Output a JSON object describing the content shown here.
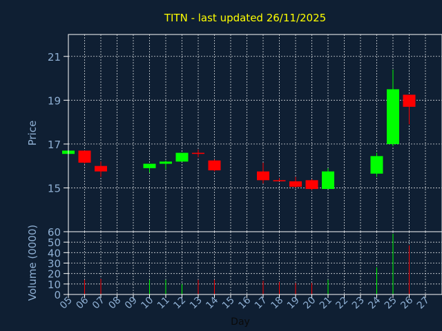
{
  "colors": {
    "background": "#0f1f33",
    "title": "#ffff00",
    "axis_text": "#8fb0d4",
    "frame": "#ffffff",
    "up": "#00ff00",
    "down": "#ff0000",
    "neutral": "#ff0000"
  },
  "chart_data": [
    {
      "type": "candlestick",
      "title": "TITN - last updated 26/11/2025",
      "xlabel": "",
      "ylabel": "Price",
      "ylim": [
        13.0,
        22.0
      ],
      "yticks": [
        "15",
        "17",
        "19",
        "21"
      ],
      "grid": true,
      "x": [
        "05",
        "06",
        "07",
        "08",
        "09",
        "10",
        "11",
        "12",
        "13",
        "14",
        "15",
        "16",
        "17",
        "18",
        "19",
        "20",
        "21",
        "22",
        "23",
        "24",
        "25",
        "26",
        "27"
      ],
      "candles": [
        {
          "x": "05",
          "open": 16.55,
          "high": 16.7,
          "low": 16.5,
          "close": 16.7
        },
        {
          "x": "06",
          "open": 16.7,
          "high": 16.7,
          "low": 16.1,
          "close": 16.15
        },
        {
          "x": "07",
          "open": 16.0,
          "high": 16.2,
          "low": 15.5,
          "close": 15.75
        },
        {
          "x": "10",
          "open": 15.9,
          "high": 16.1,
          "low": 15.7,
          "close": 16.1
        },
        {
          "x": "11",
          "open": 16.1,
          "high": 16.25,
          "low": 15.85,
          "close": 16.2
        },
        {
          "x": "12",
          "open": 16.2,
          "high": 16.6,
          "low": 16.2,
          "close": 16.6
        },
        {
          "x": "13",
          "open": 16.6,
          "high": 16.75,
          "low": 16.4,
          "close": 16.55
        },
        {
          "x": "14",
          "open": 16.25,
          "high": 16.3,
          "low": 15.75,
          "close": 15.8
        },
        {
          "x": "17",
          "open": 15.75,
          "high": 16.15,
          "low": 15.2,
          "close": 15.35
        },
        {
          "x": "18",
          "open": 15.35,
          "high": 15.45,
          "low": 15.3,
          "close": 15.3
        },
        {
          "x": "19",
          "open": 15.3,
          "high": 15.5,
          "low": 15.0,
          "close": 15.05
        },
        {
          "x": "20",
          "open": 15.35,
          "high": 15.4,
          "low": 14.9,
          "close": 14.95
        },
        {
          "x": "21",
          "open": 14.95,
          "high": 15.9,
          "low": 14.95,
          "close": 15.75
        },
        {
          "x": "24",
          "open": 15.65,
          "high": 16.6,
          "low": 15.5,
          "close": 16.45
        },
        {
          "x": "25",
          "open": 17.0,
          "high": 20.4,
          "low": 16.9,
          "close": 19.5
        },
        {
          "x": "26",
          "open": 19.25,
          "high": 19.25,
          "low": 17.9,
          "close": 18.7
        }
      ]
    },
    {
      "type": "bar",
      "xlabel": "Day",
      "ylabel": "Volume (0000)",
      "ylim": [
        0,
        60
      ],
      "yticks": [
        "0",
        "10",
        "20",
        "30",
        "40",
        "50",
        "60"
      ],
      "grid": true,
      "categories": [
        "05",
        "06",
        "07",
        "08",
        "09",
        "10",
        "11",
        "12",
        "13",
        "14",
        "15",
        "16",
        "17",
        "18",
        "19",
        "20",
        "21",
        "22",
        "23",
        "24",
        "25",
        "26",
        "27"
      ],
      "bars": [
        {
          "x": "06",
          "value": 14,
          "color": "down"
        },
        {
          "x": "07",
          "value": 15,
          "color": "down"
        },
        {
          "x": "10",
          "value": 14,
          "color": "up"
        },
        {
          "x": "11",
          "value": 14,
          "color": "up"
        },
        {
          "x": "12",
          "value": 10,
          "color": "up"
        },
        {
          "x": "13",
          "value": 14,
          "color": "down"
        },
        {
          "x": "14",
          "value": 14,
          "color": "down"
        },
        {
          "x": "17",
          "value": 13,
          "color": "down"
        },
        {
          "x": "18",
          "value": 12,
          "color": "down"
        },
        {
          "x": "19",
          "value": 11,
          "color": "down"
        },
        {
          "x": "20",
          "value": 11,
          "color": "down"
        },
        {
          "x": "21",
          "value": 14,
          "color": "up"
        },
        {
          "x": "24",
          "value": 26,
          "color": "up"
        },
        {
          "x": "25",
          "value": 58,
          "color": "up"
        },
        {
          "x": "26",
          "value": 47,
          "color": "down"
        }
      ]
    }
  ]
}
